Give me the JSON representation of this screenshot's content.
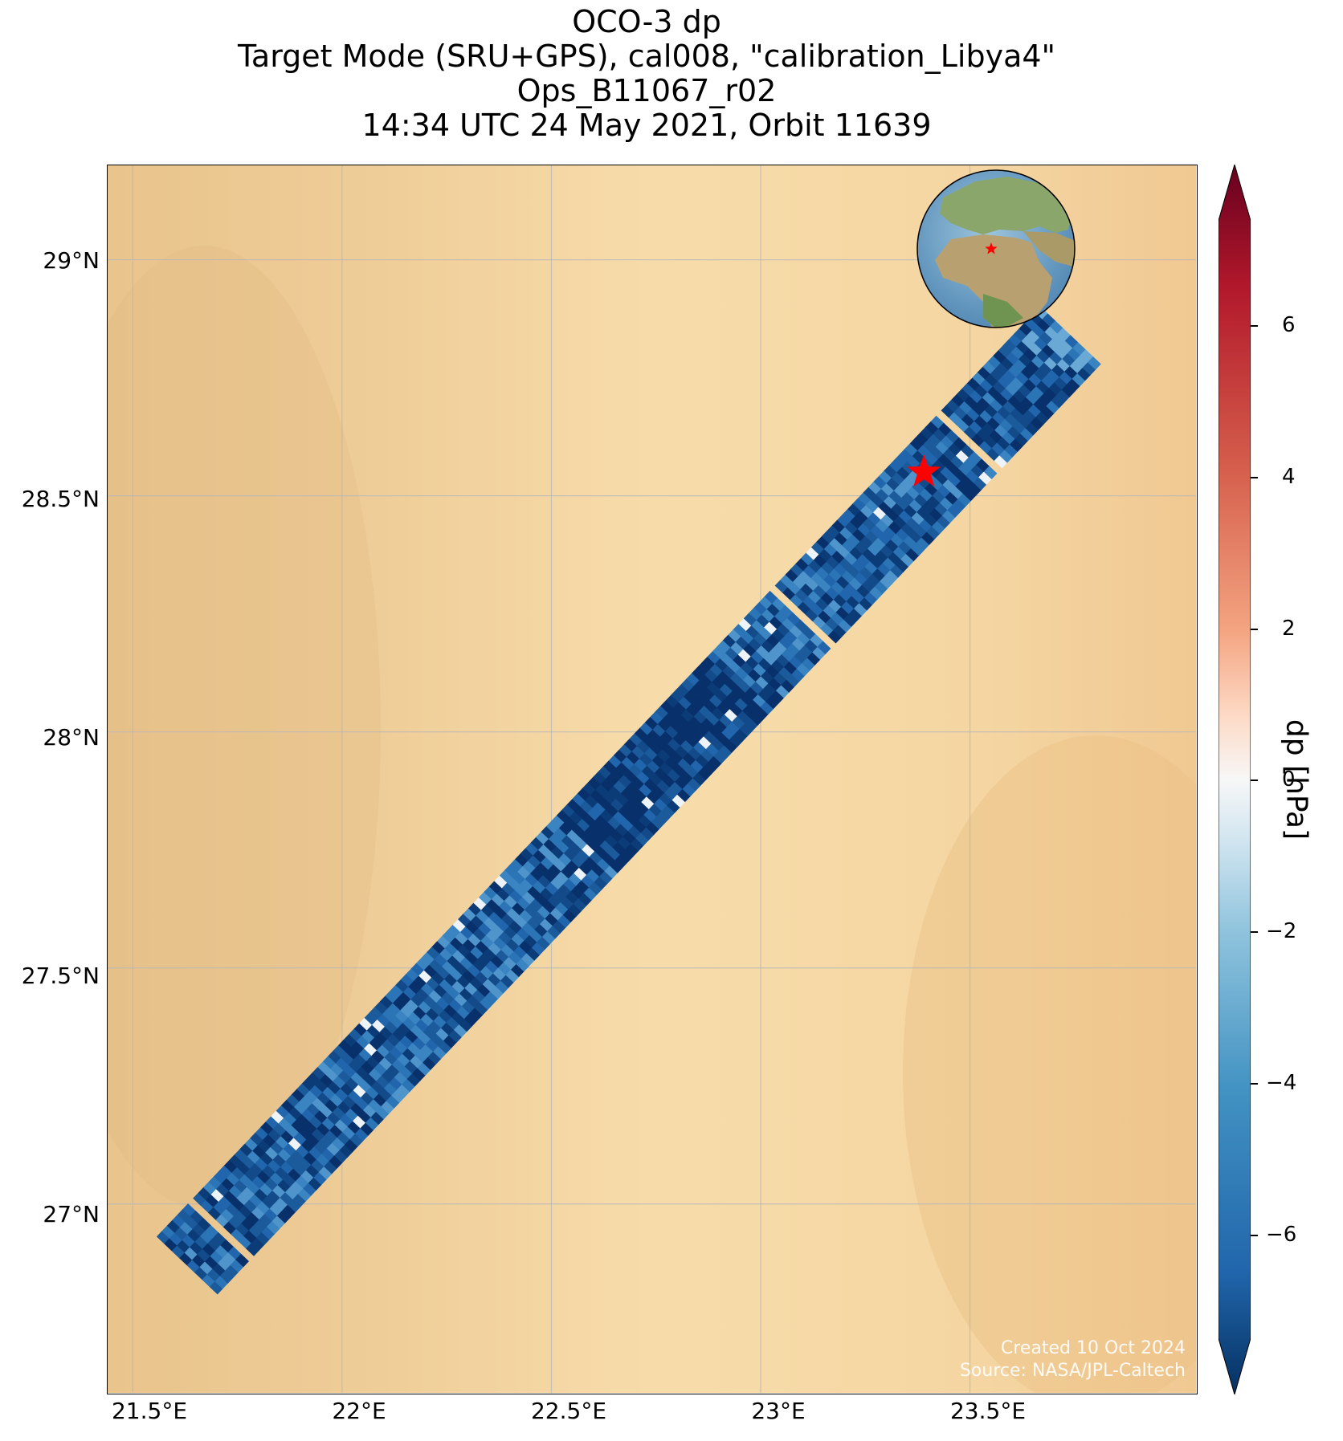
{
  "title": {
    "line1": "OCO-3 dp",
    "line2": "Target Mode (SRU+GPS), cal008, \"calibration_Libya4\"",
    "line3": "Ops_B11067_r02",
    "line4": "14:34 UTC 24 May 2021, Orbit 11639"
  },
  "map": {
    "lon_range": [
      21.44,
      24.04
    ],
    "lat_range": [
      26.6,
      29.2
    ],
    "lat_ticks": [
      "29°N",
      "28.5°N",
      "28°N",
      "27.5°N",
      "27°N"
    ],
    "lon_ticks": [
      "21.5°E",
      "22°E",
      "22.5°E",
      "23°E",
      "23.5°E"
    ],
    "target": {
      "lon": 23.39,
      "lat": 28.55,
      "marker": "star",
      "color": "#ff0000"
    },
    "swath_start": {
      "lon": 21.63,
      "lat": 26.87
    },
    "swath_end": {
      "lon": 23.74,
      "lat": 28.84
    },
    "background": "desert satellite imagery",
    "inset": "globe locator with red star"
  },
  "colorbar": {
    "label": "dp [hPa]",
    "ticks": [
      "6",
      "4",
      "2",
      "0",
      "−2",
      "−4",
      "−6"
    ],
    "range": [
      -7.5,
      7.5
    ],
    "colormap": "RdBu_r"
  },
  "credit": {
    "line1": "Created 10 Oct 2024",
    "line2": "Source: NASA/JPL-Caltech"
  }
}
